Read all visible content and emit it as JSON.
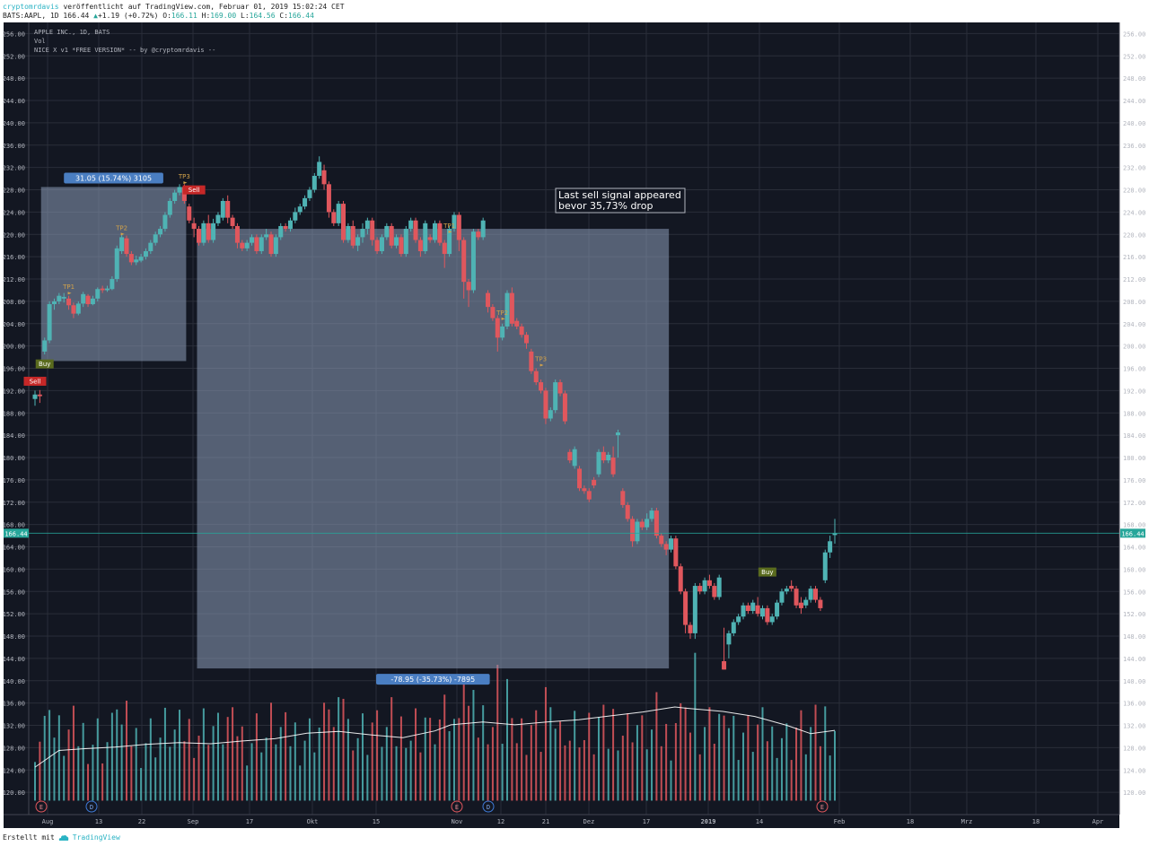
{
  "header": {
    "author": "cryptomrdavis",
    "published_text": " veröffentlicht auf TradingView.com, Februar 01, 2019 15:02:24 CET",
    "symbol_line": "BATS:AAPL, 1D 166.44",
    "change": "+1.19 (+0.72%)",
    "open_label": "O:",
    "open": "166.11",
    "high_label": "H:",
    "high": "169.00",
    "low_label": "L:",
    "low": "164.56",
    "close_label": "C:",
    "close": "166.44"
  },
  "legend": {
    "line1": "APPLE INC., 1D, BATS",
    "line2": "Vol",
    "line3": "NICE X v1 *FREE VERSION* -- by @cryptomrdavis --"
  },
  "footer": {
    "made_with": "Erstellt mit",
    "brand": "TradingView"
  },
  "colors": {
    "bg": "#131722",
    "up": "#4fb3b4",
    "down": "#e0575d",
    "grid": "#2a2e39",
    "box": "#8c9cb8",
    "price_tag": "#26a69a"
  },
  "chart_data": {
    "type": "candlestick",
    "ylim": [
      116,
      258
    ],
    "yticks": [
      "256.00",
      "252.00",
      "248.00",
      "244.00",
      "240.00",
      "236.00",
      "232.00",
      "228.00",
      "224.00",
      "220.00",
      "216.00",
      "212.00",
      "208.00",
      "204.00",
      "200.00",
      "196.00",
      "192.00",
      "188.00",
      "184.00",
      "180.00",
      "176.00",
      "172.00",
      "168.00",
      "164.00",
      "160.00",
      "156.00",
      "152.00",
      "148.00",
      "144.00",
      "140.00",
      "136.00",
      "132.00",
      "128.00",
      "124.00",
      "120.00"
    ],
    "xticks": [
      "Aug",
      "13",
      "22",
      "Sep",
      "17",
      "Okt",
      "15",
      "Nov",
      "12",
      "21",
      "Dez",
      "17",
      "2019",
      "14",
      "Feb",
      "18",
      "Mrz",
      "18",
      "Apr"
    ],
    "last_price": "166.44",
    "candles": [
      [
        190.5,
        191.3,
        189.3,
        192.0
      ],
      [
        191.3,
        191.0,
        189.8,
        192.1
      ],
      [
        199,
        201,
        198.5,
        201.5
      ],
      [
        201,
        207.5,
        200.5,
        208.0
      ],
      [
        207.5,
        208,
        206.5,
        208.5
      ],
      [
        208,
        209,
        207.5,
        209.5
      ],
      [
        208.5,
        208.8,
        207.8,
        209.5
      ],
      [
        208.5,
        207.3,
        206.5,
        209
      ],
      [
        207.3,
        205.8,
        205,
        207.8
      ],
      [
        205.8,
        207.6,
        205.5,
        208
      ],
      [
        207.6,
        209.3,
        207,
        209.7
      ],
      [
        209,
        207.5,
        207,
        209.3
      ],
      [
        207.5,
        208.5,
        207.3,
        209
      ],
      [
        208.5,
        210.2,
        208,
        210.5
      ],
      [
        210.3,
        210,
        209.5,
        210.8
      ],
      [
        210,
        210.3,
        209.7,
        210.8
      ],
      [
        210.2,
        212,
        210,
        212.5
      ],
      [
        212,
        217.5,
        211.5,
        218
      ],
      [
        217,
        219.5,
        216.5,
        220
      ],
      [
        219.3,
        216.5,
        216,
        219.8
      ],
      [
        216.5,
        215,
        214.5,
        217
      ],
      [
        215,
        215.5,
        214.5,
        216.2
      ],
      [
        215.3,
        216,
        215,
        216.5
      ],
      [
        216,
        217,
        215.5,
        217.5
      ],
      [
        217,
        218.5,
        216.5,
        219
      ],
      [
        218.5,
        220,
        218,
        220.5
      ],
      [
        220,
        221,
        219.5,
        221.5
      ],
      [
        221,
        223.5,
        220.5,
        224
      ],
      [
        223.5,
        226,
        223,
        226.5
      ],
      [
        226,
        227.5,
        225.5,
        228
      ],
      [
        227.5,
        228.5,
        227,
        229
      ],
      [
        228.5,
        226,
        225.5,
        229
      ],
      [
        225,
        222.5,
        222,
        225.5
      ],
      [
        222,
        221,
        219.5,
        223
      ],
      [
        221,
        218.5,
        218,
        221.5
      ],
      [
        218.5,
        222,
        218,
        222.5
      ],
      [
        222,
        219,
        218.5,
        223.5
      ],
      [
        219,
        222,
        218.5,
        222.8
      ],
      [
        222,
        223.5,
        221.5,
        224
      ],
      [
        223,
        226,
        222.5,
        226.5
      ],
      [
        226,
        223,
        222,
        227
      ],
      [
        223,
        221.5,
        221,
        223.5
      ],
      [
        221.5,
        218.5,
        217.5,
        222
      ],
      [
        218.5,
        217.5,
        217,
        219
      ],
      [
        217.5,
        218.5,
        217,
        219
      ],
      [
        218.5,
        219.5,
        218,
        220
      ],
      [
        219.5,
        217,
        216.5,
        220
      ],
      [
        217,
        219.5,
        216.5,
        220
      ],
      [
        219.5,
        220,
        219,
        221
      ],
      [
        220,
        216.5,
        216,
        220.5
      ],
      [
        216.5,
        219.5,
        216,
        220
      ],
      [
        219.5,
        221.5,
        219,
        222
      ],
      [
        221.5,
        221,
        220.5,
        222
      ],
      [
        221,
        222.5,
        220.5,
        223
      ],
      [
        222.5,
        224,
        222,
        224.8
      ],
      [
        224,
        225,
        223.5,
        225.5
      ],
      [
        225,
        226.5,
        224.5,
        227
      ],
      [
        226.5,
        228,
        226,
        228.5
      ],
      [
        228,
        230.5,
        227.5,
        231
      ],
      [
        230.5,
        233,
        230,
        234
      ],
      [
        231.5,
        229,
        228,
        232.5
      ],
      [
        229,
        224,
        223,
        229.5
      ],
      [
        224,
        222,
        221.5,
        224.5
      ],
      [
        222,
        225.5,
        221.5,
        226
      ],
      [
        225.5,
        219,
        218.5,
        226
      ],
      [
        219,
        221.5,
        218.5,
        222
      ],
      [
        221.5,
        218,
        217.5,
        222.5
      ],
      [
        218,
        219.5,
        217,
        220
      ],
      [
        219.5,
        221,
        218.5,
        222
      ],
      [
        221,
        222.5,
        220,
        223
      ],
      [
        222.5,
        219,
        218,
        223
      ],
      [
        219,
        217,
        216.5,
        219.5
      ],
      [
        217,
        219.5,
        216.5,
        220
      ],
      [
        219.5,
        221.5,
        219,
        222
      ],
      [
        221.5,
        218,
        217.5,
        222
      ],
      [
        218,
        219.5,
        217.5,
        220
      ],
      [
        219.5,
        216.5,
        216,
        220
      ],
      [
        216.5,
        221,
        216,
        221.5
      ],
      [
        221,
        222.5,
        220.5,
        223
      ],
      [
        222.5,
        219,
        218.5,
        223
      ],
      [
        219,
        217,
        216,
        219.5
      ],
      [
        217,
        222,
        216.5,
        222.5
      ],
      [
        219.5,
        219,
        218.5,
        220
      ],
      [
        219,
        222,
        218.5,
        222.5
      ],
      [
        222,
        218.5,
        218,
        222.5
      ],
      [
        218.5,
        216.5,
        214,
        219
      ],
      [
        216.5,
        221,
        216,
        221.5
      ],
      [
        221,
        223.5,
        220.5,
        224
      ],
      [
        223.5,
        219,
        217,
        224
      ],
      [
        219,
        211.5,
        208.5,
        219.5
      ],
      [
        211.5,
        210,
        207,
        212
      ],
      [
        210,
        220.5,
        209.5,
        221
      ],
      [
        220.5,
        219.5,
        219,
        221
      ],
      [
        219.5,
        222.5,
        219,
        223
      ],
      [
        209.5,
        207,
        206,
        210
      ],
      [
        207,
        205,
        204.5,
        207.5
      ],
      [
        205,
        201.5,
        199,
        205.5
      ],
      [
        201.5,
        203.5,
        201,
        204
      ],
      [
        203.5,
        209.5,
        203,
        210
      ],
      [
        209.5,
        204,
        203.5,
        210.5
      ],
      [
        204.5,
        203.5,
        203,
        205
      ],
      [
        203.5,
        202,
        201.5,
        204
      ],
      [
        202,
        200.5,
        199.5,
        202.5
      ],
      [
        199,
        195.5,
        195,
        199.5
      ],
      [
        195.5,
        193.5,
        193,
        196
      ],
      [
        193.5,
        192,
        191.5,
        194
      ],
      [
        192,
        187,
        186,
        192.5
      ],
      [
        187,
        188.5,
        186.5,
        189
      ],
      [
        188.5,
        193.5,
        188,
        194
      ],
      [
        193.5,
        191.5,
        191,
        194
      ],
      [
        191.5,
        186.5,
        186,
        192
      ],
      [
        181,
        179.5,
        179,
        181.5
      ],
      [
        178.5,
        181.5,
        178,
        182
      ],
      [
        178,
        174.5,
        174,
        178.5
      ],
      [
        174.5,
        174,
        173.5,
        175
      ],
      [
        174,
        172.5,
        172,
        174.5
      ],
      [
        176,
        175,
        174.5,
        176.5
      ],
      [
        177,
        181,
        176.5,
        181.5
      ],
      [
        181,
        179.5,
        179,
        182
      ],
      [
        179.5,
        180.5,
        179,
        181
      ],
      [
        180,
        177,
        176.5,
        182
      ],
      [
        184,
        184.5,
        180,
        185
      ],
      [
        174,
        171.5,
        171,
        174.5
      ],
      [
        171.5,
        169,
        168.5,
        172
      ],
      [
        169,
        165,
        164,
        169.5
      ],
      [
        165,
        168.5,
        164.5,
        169
      ],
      [
        168.5,
        167.5,
        167,
        169
      ],
      [
        167.5,
        169,
        167,
        170
      ],
      [
        169,
        170.5,
        168.5,
        171
      ],
      [
        170.5,
        166,
        165.5,
        171
      ],
      [
        166,
        164.5,
        164,
        166.5
      ],
      [
        164.5,
        163.5,
        162.5,
        165
      ],
      [
        163.5,
        165.5,
        163,
        166
      ],
      [
        165.5,
        160.5,
        160,
        166
      ],
      [
        160.5,
        156,
        155.5,
        161
      ],
      [
        156,
        150,
        148.5,
        156.5
      ],
      [
        150,
        148.5,
        147.5,
        150.5
      ],
      [
        148.5,
        157,
        147.5,
        157.5
      ],
      [
        157,
        156,
        155.5,
        157.5
      ],
      [
        156,
        158,
        155.5,
        158.5
      ],
      [
        158,
        157,
        156.5,
        159
      ],
      [
        157,
        155,
        154.5,
        157.5
      ],
      [
        155,
        158.5,
        154.5,
        159
      ],
      [
        143.5,
        142,
        142,
        149.5
      ],
      [
        146.5,
        148.5,
        144,
        149
      ],
      [
        148.5,
        150.5,
        148,
        151
      ],
      [
        150.5,
        151.5,
        150,
        152
      ],
      [
        151.5,
        153.5,
        151,
        154
      ],
      [
        153.5,
        152.5,
        152,
        154
      ],
      [
        152.5,
        154,
        152,
        154.5
      ],
      [
        153.5,
        152,
        151.5,
        155
      ],
      [
        151.5,
        153,
        151,
        153.5
      ],
      [
        153,
        150.5,
        150,
        153.5
      ],
      [
        150.5,
        151.5,
        150,
        152
      ],
      [
        151.5,
        154,
        151,
        154.5
      ],
      [
        154,
        156,
        153.5,
        156.5
      ],
      [
        156,
        156.5,
        155.5,
        157
      ],
      [
        157,
        156.5,
        156,
        158
      ],
      [
        156.5,
        153.5,
        153,
        157
      ],
      [
        154,
        153,
        152,
        155
      ],
      [
        153.5,
        154.5,
        153,
        155
      ],
      [
        154.5,
        156.5,
        154,
        157
      ],
      [
        156.5,
        154.5,
        154,
        157
      ],
      [
        154.5,
        153,
        152.5,
        155
      ],
      [
        158,
        163,
        157.5,
        163.5
      ],
      [
        163,
        165,
        162,
        166
      ],
      [
        166.11,
        166.44,
        164.56,
        169
      ]
    ],
    "volume_ma": [
      [
        0.0,
        124.5
      ],
      [
        0.03,
        127.5
      ],
      [
        0.06,
        127.8
      ],
      [
        0.1,
        128.1
      ],
      [
        0.14,
        128.6
      ],
      [
        0.18,
        128.9
      ],
      [
        0.22,
        128.7
      ],
      [
        0.26,
        129.2
      ],
      [
        0.3,
        129.6
      ],
      [
        0.34,
        130.6
      ],
      [
        0.38,
        130.9
      ],
      [
        0.42,
        130.3
      ],
      [
        0.46,
        129.8
      ],
      [
        0.5,
        131.0
      ],
      [
        0.52,
        132.1
      ],
      [
        0.56,
        132.6
      ],
      [
        0.6,
        132.1
      ],
      [
        0.64,
        132.6
      ],
      [
        0.68,
        133.0
      ],
      [
        0.72,
        133.7
      ],
      [
        0.76,
        134.4
      ],
      [
        0.8,
        135.3
      ],
      [
        0.82,
        135.0
      ],
      [
        0.86,
        134.5
      ],
      [
        0.9,
        133.6
      ],
      [
        0.94,
        132.0
      ],
      [
        0.97,
        130.5
      ],
      [
        1.0,
        131.1
      ]
    ],
    "signals": [
      {
        "text": "Sell",
        "type": "sell-label",
        "candle": 0,
        "price": 193.2
      },
      {
        "text": "Buy",
        "type": "buy-label",
        "candle": 2,
        "price": 196.3
      },
      {
        "text": "TP1",
        "type": "tp",
        "candle": 7,
        "price": 210.2
      },
      {
        "text": "TP2",
        "type": "tp",
        "candle": 18,
        "price": 220.8
      },
      {
        "text": "TP3",
        "type": "tp",
        "candle": 31,
        "price": 230.0
      },
      {
        "text": "Sell",
        "type": "sell-label",
        "candle": 33,
        "price": 227.5
      },
      {
        "text": "TP1",
        "type": "tp",
        "candle": 86,
        "price": 221.2
      },
      {
        "text": "TP2",
        "type": "tp",
        "candle": 97,
        "price": 205.6
      },
      {
        "text": "TP3",
        "type": "tp",
        "candle": 105,
        "price": 197.3
      },
      {
        "text": "Buy",
        "type": "buy-label",
        "candle": 152,
        "price": 159.0
      }
    ],
    "measure_boxes": [
      {
        "label": "31.05 (15.74%) 3105",
        "top": 228.5,
        "bottom": 197.3,
        "label_pos": "above"
      },
      {
        "label": "-78.95 (-35.73%) -7895",
        "top": 221.0,
        "bottom": 142.2,
        "label_pos": "below"
      }
    ],
    "note": {
      "line1": "Last sell signal appeared",
      "line2": "bevor 35,73% drop"
    },
    "earnings_markers": [
      "E",
      "D",
      "E",
      "D",
      "E"
    ]
  }
}
